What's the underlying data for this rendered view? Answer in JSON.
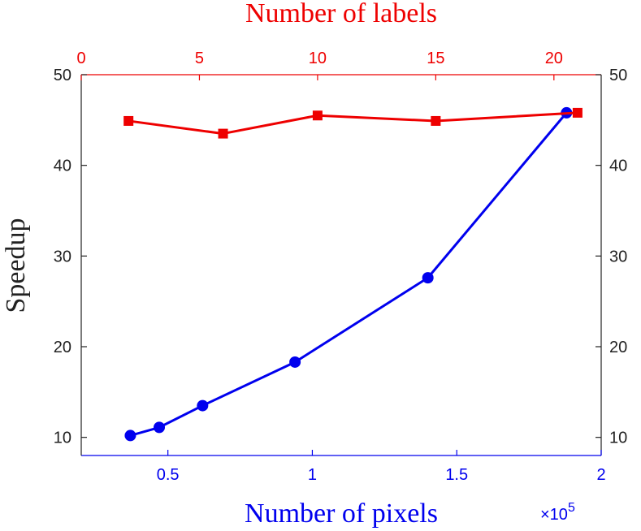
{
  "chart_data": {
    "type": "line",
    "ylabel": "Speedup",
    "ylim": [
      8,
      50
    ],
    "yticks": [
      "10",
      "20",
      "30",
      "40",
      "50"
    ],
    "y_right_ticks": [
      "10",
      "20",
      "30",
      "40",
      "50"
    ],
    "x_bottom": {
      "label": "Number of pixels",
      "lim": [
        0.2,
        2.0
      ],
      "ticks": [
        "0.5",
        "1",
        "1.5",
        "2"
      ],
      "tick_values": [
        0.5,
        1.0,
        1.5,
        2.0
      ],
      "multiplier": {
        "base": "×10",
        "exp": "5"
      }
    },
    "x_top": {
      "label": "Number of labels",
      "lim": [
        0,
        22
      ],
      "ticks": [
        "0",
        "5",
        "10",
        "15",
        "20"
      ],
      "tick_values": [
        0,
        5,
        10,
        15,
        20
      ]
    },
    "series": [
      {
        "axis": "bottom",
        "color": "#0000ee",
        "marker": "circle",
        "x": [
          0.37,
          0.47,
          0.62,
          0.94,
          1.4,
          1.88
        ],
        "y": [
          10.2,
          11.1,
          13.5,
          18.3,
          27.6,
          45.8
        ]
      },
      {
        "axis": "top",
        "color": "#ee0000",
        "marker": "square",
        "x": [
          2,
          6,
          10,
          15,
          21
        ],
        "y": [
          44.9,
          43.5,
          45.5,
          44.9,
          45.8
        ]
      }
    ],
    "grid": false
  },
  "colors": {
    "axis_dark": "#222222",
    "axis_blue": "#0000ee",
    "axis_red": "#ee0000"
  }
}
